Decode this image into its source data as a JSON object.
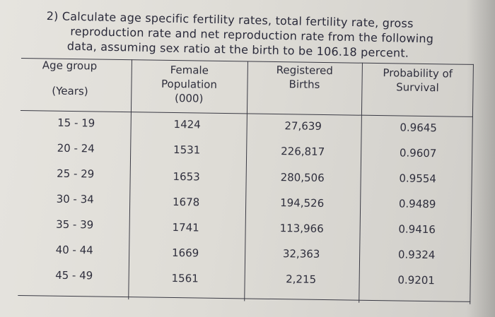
{
  "question": {
    "line1": "2) Calculate age specific fertility rates, total fertility rate, gross",
    "line2": "reproduction rate and net reproduction rate from the following",
    "line3": "data, assuming sex ratio at the birth to be 106.18 percent."
  },
  "table": {
    "headers": {
      "age_group_line1": "Age group",
      "age_group_line2": "(Years)",
      "female_line1": "Female",
      "female_line2": "Population",
      "female_line3": "(000)",
      "births_line1": "Registered",
      "births_line2": "Births",
      "survival_line1": "Probability of",
      "survival_line2": "Survival"
    },
    "rows": [
      {
        "age": "15 - 19",
        "female": "1424",
        "births": "27,639",
        "survival": "0.9645"
      },
      {
        "age": "20 - 24",
        "female": "1531",
        "births": "226,817",
        "survival": "0.9607"
      },
      {
        "age": "25 - 29",
        "female": "1653",
        "births": "280,506",
        "survival": "0.9554"
      },
      {
        "age": "30 - 34",
        "female": "1678",
        "births": "194,526",
        "survival": "0.9489"
      },
      {
        "age": "35 - 39",
        "female": "1741",
        "births": "113,966",
        "survival": "0.9416"
      },
      {
        "age": "40 - 44",
        "female": "1669",
        "births": "32,363",
        "survival": "0.9324"
      },
      {
        "age": "45 - 49",
        "female": "1561",
        "births": "2,215",
        "survival": "0.9201"
      }
    ]
  }
}
